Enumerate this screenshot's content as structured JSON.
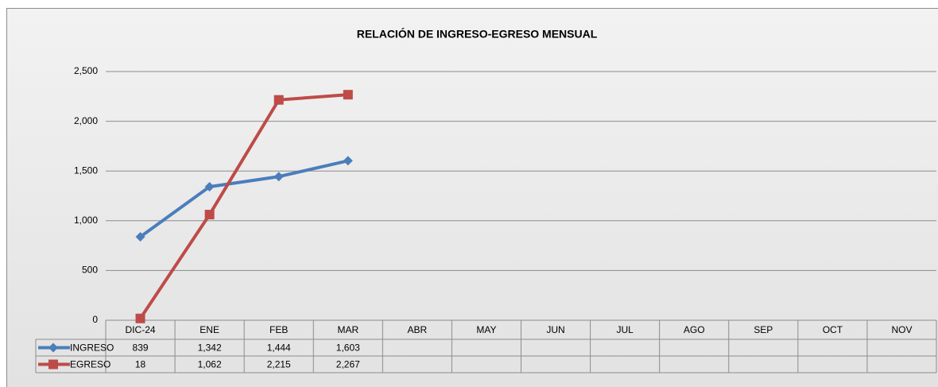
{
  "chart_data": {
    "type": "line",
    "title": "RELACIÓN DE INGRESO-EGRESO MENSUAL",
    "categories": [
      "DIC-24",
      "ENE",
      "FEB",
      "MAR",
      "ABR",
      "MAY",
      "JUN",
      "JUL",
      "AGO",
      "SEP",
      "OCT",
      "NOV"
    ],
    "series": [
      {
        "name": "INGRESO",
        "color": "#4a7ebb",
        "marker": "diamond",
        "values": [
          839,
          1342,
          1444,
          1603,
          null,
          null,
          null,
          null,
          null,
          null,
          null,
          null
        ],
        "value_labels": [
          "839",
          "1,342",
          "1,444",
          "1,603",
          null,
          null,
          null,
          null,
          null,
          null,
          null,
          null
        ]
      },
      {
        "name": "EGRESO",
        "color": "#be4b48",
        "marker": "square",
        "values": [
          18,
          1062,
          2215,
          2267,
          null,
          null,
          null,
          null,
          null,
          null,
          null,
          null
        ],
        "value_labels": [
          "18",
          "1,062",
          "2,215",
          "2,267",
          null,
          null,
          null,
          null,
          null,
          null,
          null,
          null
        ]
      }
    ],
    "ylim": [
      0,
      2500
    ],
    "yticks": [
      0,
      500,
      {
        "value": 1000,
        "label": "1,000"
      },
      {
        "value": 1500,
        "label": "1,500"
      },
      {
        "value": 2000,
        "label": "2,000"
      },
      {
        "value": 2500,
        "label": "2,500"
      }
    ],
    "grid": true,
    "data_table": true
  }
}
